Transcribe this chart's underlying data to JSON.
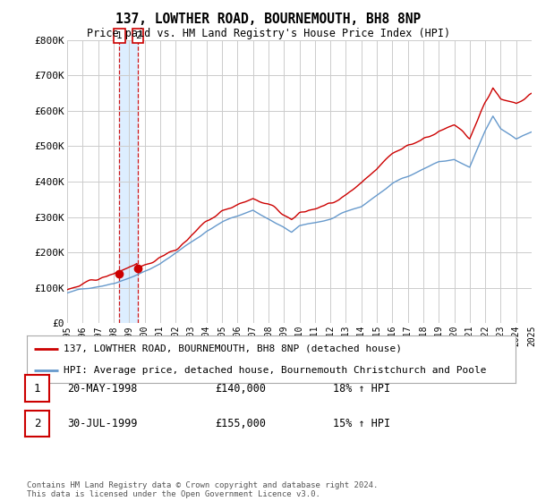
{
  "title": "137, LOWTHER ROAD, BOURNEMOUTH, BH8 8NP",
  "subtitle": "Price paid vs. HM Land Registry's House Price Index (HPI)",
  "legend_line1": "137, LOWTHER ROAD, BOURNEMOUTH, BH8 8NP (detached house)",
  "legend_line2": "HPI: Average price, detached house, Bournemouth Christchurch and Poole",
  "footer": "Contains HM Land Registry data © Crown copyright and database right 2024.\nThis data is licensed under the Open Government Licence v3.0.",
  "transaction1_label": "1",
  "transaction1_date": "20-MAY-1998",
  "transaction1_price": "£140,000",
  "transaction1_hpi": "18% ↑ HPI",
  "transaction2_label": "2",
  "transaction2_date": "30-JUL-1999",
  "transaction2_price": "£155,000",
  "transaction2_hpi": "15% ↑ HPI",
  "line_color_red": "#cc0000",
  "line_color_blue": "#6699cc",
  "vline_color": "#cc0000",
  "shade_color": "#ddeeff",
  "background_color": "#ffffff",
  "grid_color": "#cccccc",
  "ylim": [
    0,
    800000
  ],
  "yticks": [
    0,
    100000,
    200000,
    300000,
    400000,
    500000,
    600000,
    700000,
    800000
  ],
  "ytick_labels": [
    "£0",
    "£100K",
    "£200K",
    "£300K",
    "£400K",
    "£500K",
    "£600K",
    "£700K",
    "£800K"
  ],
  "xtick_years": [
    1995,
    1996,
    1997,
    1998,
    1999,
    2000,
    2001,
    2002,
    2003,
    2004,
    2005,
    2006,
    2007,
    2008,
    2009,
    2010,
    2011,
    2012,
    2013,
    2014,
    2015,
    2016,
    2017,
    2018,
    2019,
    2020,
    2021,
    2022,
    2023,
    2024,
    2025
  ],
  "transaction1_x": 1998.38,
  "transaction2_x": 1999.58,
  "transaction1_y": 140000,
  "transaction2_y": 155000
}
